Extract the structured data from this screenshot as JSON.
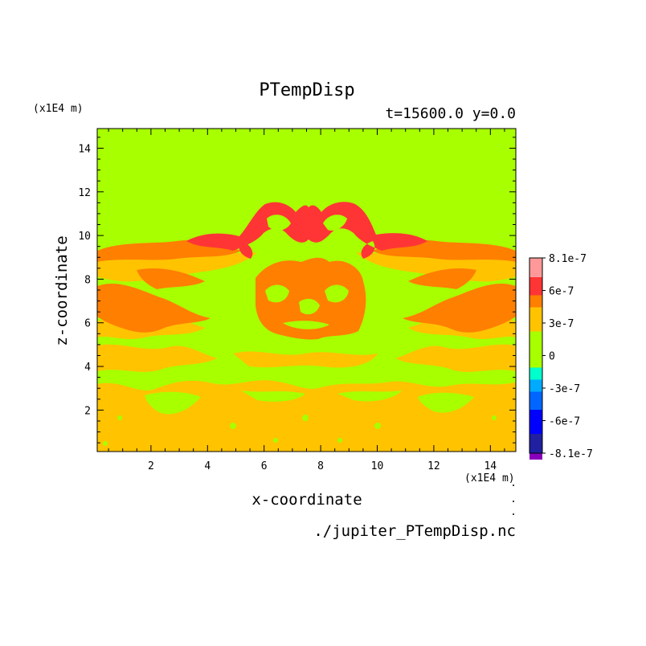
{
  "chart_data": {
    "type": "heatmap",
    "title": "PTempDisp",
    "subtitle": "t=15600.0 y=0.0",
    "xlabel": "x-coordinate",
    "ylabel": "z-coordinate",
    "x_unit": "(x1E4 m)",
    "z_unit": "(x1E4 m)",
    "xlim": [
      0.1,
      14.9
    ],
    "ylim": [
      0.1,
      14.9
    ],
    "x_ticks": [
      "2",
      "4",
      "6",
      "8",
      "10",
      "12",
      "14"
    ],
    "y_ticks": [
      "2",
      "4",
      "6",
      "8",
      "10",
      "12",
      "14"
    ],
    "colorbar": {
      "labels": [
        "8.1e-7",
        "6e-7",
        "3e-7",
        "0",
        "-3e-7",
        "-6e-7",
        "-8.1e-7"
      ],
      "levels": [
        {
          "range": [
            6.5e-07,
            8.1e-07
          ],
          "color": "#ff9999"
        },
        {
          "range": [
            5e-07,
            6.5e-07
          ],
          "color": "#ff3535"
        },
        {
          "range": [
            4e-07,
            5e-07
          ],
          "color": "#ff7f00"
        },
        {
          "range": [
            2e-07,
            4e-07
          ],
          "color": "#ffc300"
        },
        {
          "range": [
            -1e-07,
            2e-07
          ],
          "color": "#a8ff00"
        },
        {
          "range": [
            -2e-07,
            -1e-07
          ],
          "color": "#00ffcc"
        },
        {
          "range": [
            -3e-07,
            -2e-07
          ],
          "color": "#00aaff"
        },
        {
          "range": [
            -4.5e-07,
            -3e-07
          ],
          "color": "#0066ff"
        },
        {
          "range": [
            -6.5e-07,
            -4.5e-07
          ],
          "color": "#0000ff"
        },
        {
          "range": [
            -8.1e-07,
            -6.5e-07
          ],
          "color": "#2020a0"
        },
        {
          "range": [
            -8.1e-07,
            -8.1e-07
          ],
          "color": "#8800bb"
        }
      ]
    },
    "regions": [
      {
        "value": 0,
        "color": "#a8ff00",
        "description": "background z 9.5 to 14.9 and band z 3 to 6"
      },
      {
        "value": 3e-07,
        "color": "#ffc300",
        "description": "bottom layer z 0.1 to 3, patches z 5 to 9"
      },
      {
        "value": 4.5e-07,
        "color": "#ff7f00",
        "description": "plumes z 5 to 9.5, central blob x 5.3 to 9.5"
      },
      {
        "value": 5.7e-07,
        "color": "#ff3535",
        "description": "cap z 9.5 to 11.7"
      }
    ]
  },
  "source_file": "./jupiter_PTempDisp.nc"
}
